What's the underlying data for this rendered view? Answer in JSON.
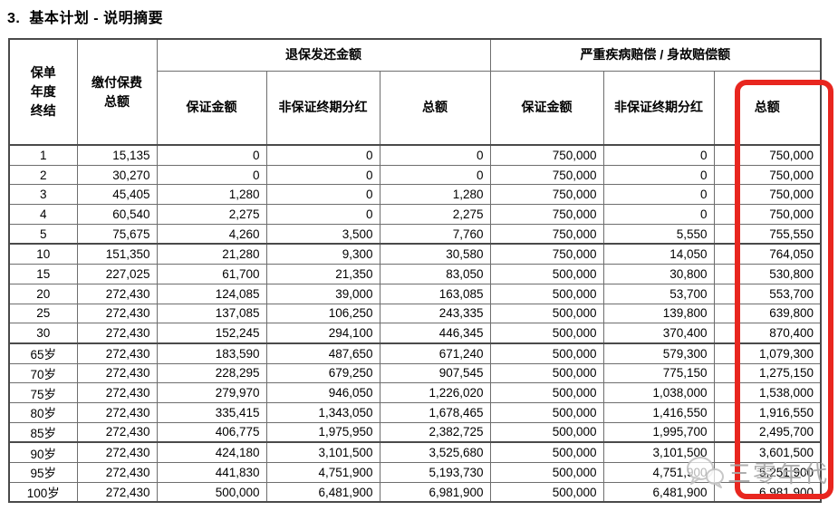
{
  "page": {
    "title_number": "3.",
    "title_text": "基本计划 - 说明摘要"
  },
  "table": {
    "headers": {
      "policy_year_lines": [
        "保单",
        "年度",
        "终结"
      ],
      "premium_lines": [
        "缴付保费",
        "总额"
      ],
      "surrender_group": "退保发还金额",
      "claim_group": "严重疾病赔偿 / 身故赔偿额",
      "sub": [
        "保证金额",
        "非保证终期分红",
        "总额",
        "保证金额",
        "非保证终期分红",
        "总额"
      ]
    },
    "rows": [
      {
        "cells": [
          "1",
          "15,135",
          "0",
          "0",
          "0",
          "750,000",
          "0",
          "750,000"
        ],
        "group_end": false
      },
      {
        "cells": [
          "2",
          "30,270",
          "0",
          "0",
          "0",
          "750,000",
          "0",
          "750,000"
        ],
        "group_end": false
      },
      {
        "cells": [
          "3",
          "45,405",
          "1,280",
          "0",
          "1,280",
          "750,000",
          "0",
          "750,000"
        ],
        "group_end": false
      },
      {
        "cells": [
          "4",
          "60,540",
          "2,275",
          "0",
          "2,275",
          "750,000",
          "0",
          "750,000"
        ],
        "group_end": false
      },
      {
        "cells": [
          "5",
          "75,675",
          "4,260",
          "3,500",
          "7,760",
          "750,000",
          "5,550",
          "755,550"
        ],
        "group_end": true
      },
      {
        "cells": [
          "10",
          "151,350",
          "21,280",
          "9,300",
          "30,580",
          "750,000",
          "14,050",
          "764,050"
        ],
        "group_end": false
      },
      {
        "cells": [
          "15",
          "227,025",
          "61,700",
          "21,350",
          "83,050",
          "500,000",
          "30,800",
          "530,800"
        ],
        "group_end": false
      },
      {
        "cells": [
          "20",
          "272,430",
          "124,085",
          "39,000",
          "163,085",
          "500,000",
          "53,700",
          "553,700"
        ],
        "group_end": false
      },
      {
        "cells": [
          "25",
          "272,430",
          "137,085",
          "106,250",
          "243,335",
          "500,000",
          "139,800",
          "639,800"
        ],
        "group_end": false
      },
      {
        "cells": [
          "30",
          "272,430",
          "152,245",
          "294,100",
          "446,345",
          "500,000",
          "370,400",
          "870,400"
        ],
        "group_end": true
      },
      {
        "cells": [
          "65岁",
          "272,430",
          "183,590",
          "487,650",
          "671,240",
          "500,000",
          "579,300",
          "1,079,300"
        ],
        "group_end": false
      },
      {
        "cells": [
          "70岁",
          "272,430",
          "228,295",
          "679,250",
          "907,545",
          "500,000",
          "775,150",
          "1,275,150"
        ],
        "group_end": false
      },
      {
        "cells": [
          "75岁",
          "272,430",
          "279,970",
          "946,050",
          "1,226,020",
          "500,000",
          "1,038,000",
          "1,538,000"
        ],
        "group_end": false
      },
      {
        "cells": [
          "80岁",
          "272,430",
          "335,415",
          "1,343,050",
          "1,678,465",
          "500,000",
          "1,416,550",
          "1,916,550"
        ],
        "group_end": false
      },
      {
        "cells": [
          "85岁",
          "272,430",
          "406,775",
          "1,975,950",
          "2,382,725",
          "500,000",
          "1,995,700",
          "2,495,700"
        ],
        "group_end": true
      },
      {
        "cells": [
          "90岁",
          "272,430",
          "424,180",
          "3,101,500",
          "3,525,680",
          "500,000",
          "3,101,500",
          "3,601,500"
        ],
        "group_end": false
      },
      {
        "cells": [
          "95岁",
          "272,430",
          "441,830",
          "4,751,900",
          "5,193,730",
          "500,000",
          "4,751,900",
          "5,251,900"
        ],
        "group_end": false
      },
      {
        "cells": [
          "100岁",
          "272,430",
          "500,000",
          "6,481,900",
          "6,981,900",
          "500,000",
          "6,481,900",
          "6,981,900"
        ],
        "group_end": false
      }
    ]
  },
  "highlight": {
    "color": "#e8261f"
  },
  "watermark": {
    "text": "三零年代"
  }
}
